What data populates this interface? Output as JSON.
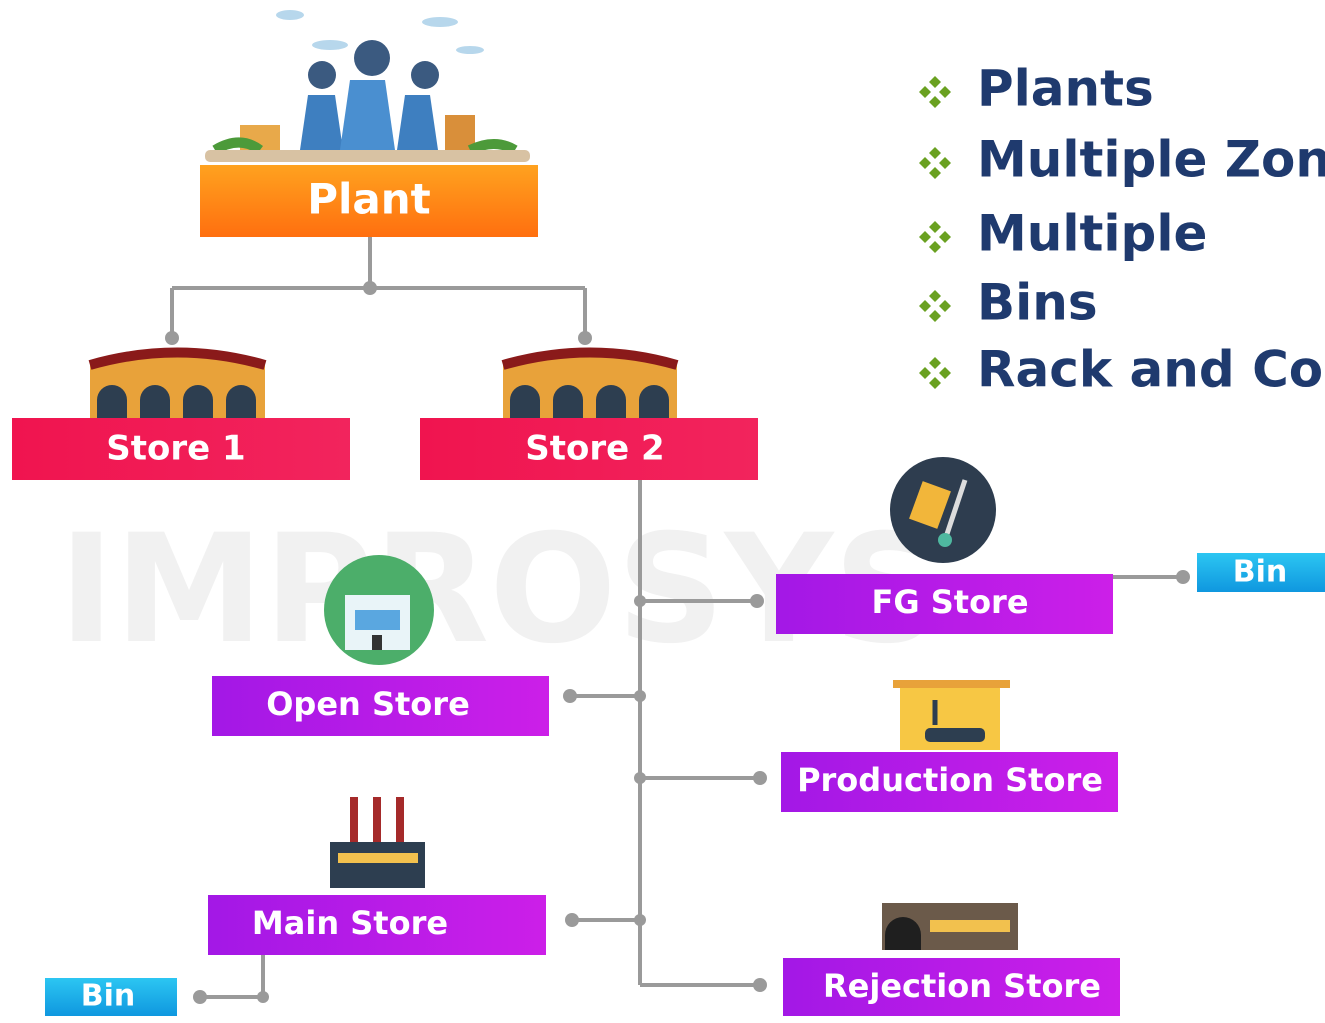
{
  "watermark": "IMPROSYS",
  "bullets": [
    "Plants",
    "Multiple Zon",
    "Multiple",
    "Bins",
    "Rack and Co"
  ],
  "nodes": [
    {
      "label": "Plant"
    },
    {
      "label": "Store 1"
    },
    {
      "label": "Store 2"
    },
    {
      "label": "FG Store"
    },
    {
      "label": "Bin"
    },
    {
      "label": "Open Store"
    },
    {
      "label": "Production Store"
    },
    {
      "label": "Main Store"
    },
    {
      "label": "Rejection Store"
    },
    {
      "label": "Bin"
    }
  ]
}
